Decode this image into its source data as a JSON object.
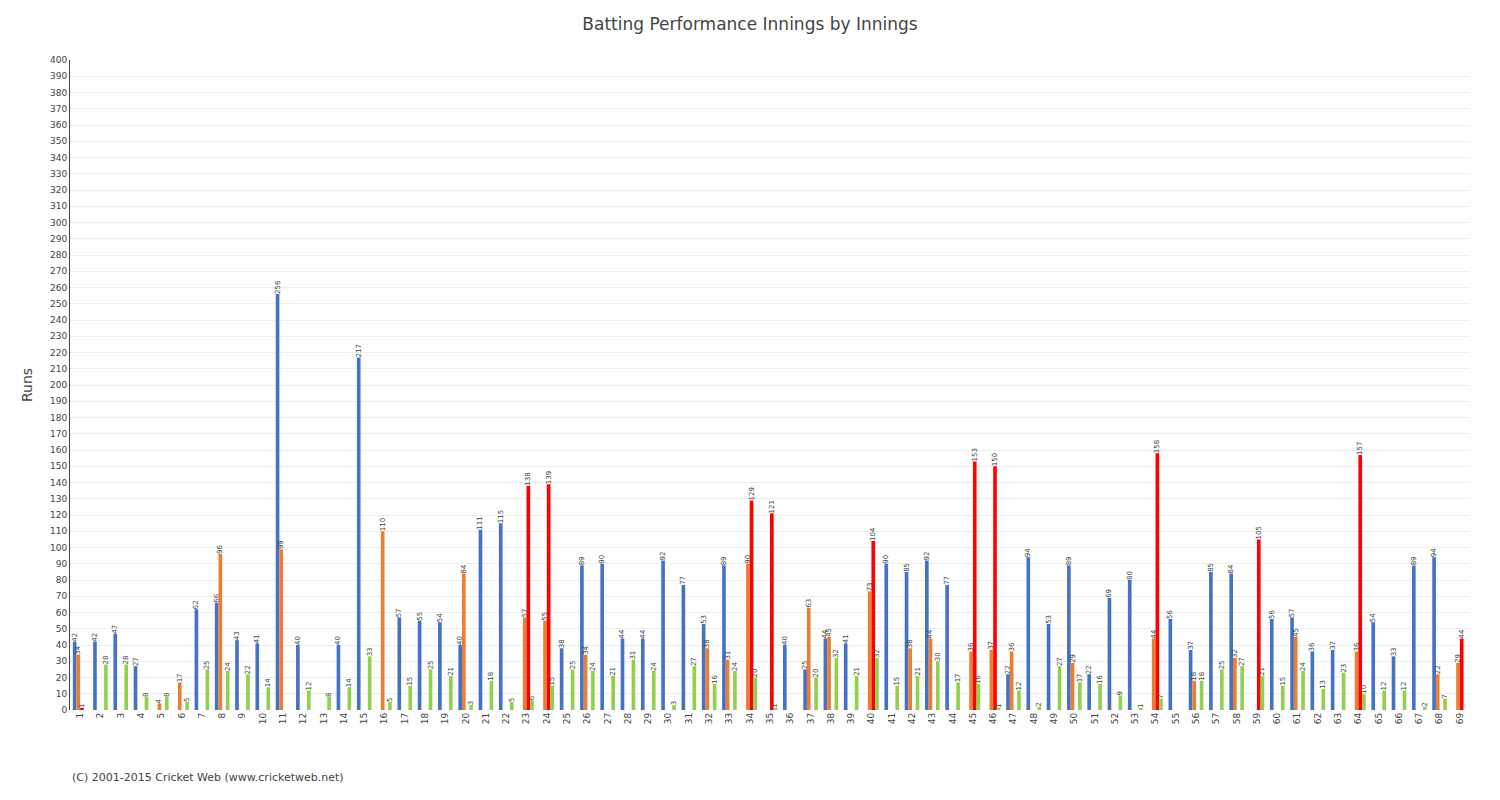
{
  "chart_data": {
    "type": "bar",
    "title": "Batting Performance Innings by Innings",
    "ylabel": "Runs",
    "annotations": [
      "(C) 2001-2015 Cricket Web (www.cricketweb.net)"
    ],
    "categories": [
      "1",
      "2",
      "3",
      "4",
      "5",
      "6",
      "7",
      "8",
      "9",
      "10",
      "11",
      "12",
      "13",
      "14",
      "15",
      "16",
      "17",
      "18",
      "19",
      "20",
      "21",
      "22",
      "23",
      "24",
      "25",
      "26",
      "27",
      "28",
      "29",
      "30",
      "31",
      "32",
      "33",
      "34",
      "35",
      "36",
      "37",
      "38",
      "39",
      "40",
      "41",
      "42",
      "43",
      "44",
      "45",
      "46",
      "47",
      "48",
      "49",
      "50",
      "51",
      "52",
      "53",
      "54",
      "55",
      "56",
      "57",
      "58",
      "59",
      "60",
      "61",
      "62",
      "63",
      "64",
      "65",
      "66",
      "67",
      "68",
      "69"
    ],
    "series": [
      {
        "color": "#4472c4",
        "values": [
          42,
          42,
          47,
          27,
          0,
          0,
          62,
          66,
          43,
          41,
          256,
          40,
          0,
          40,
          217,
          0,
          57,
          55,
          54,
          40,
          111,
          115,
          0,
          0,
          38,
          89,
          90,
          44,
          44,
          92,
          77,
          53,
          89,
          0,
          0,
          40,
          25,
          44,
          41,
          0,
          90,
          85,
          92,
          77,
          0,
          0,
          22,
          94,
          53,
          89,
          22,
          69,
          80,
          0,
          56,
          37,
          85,
          84,
          0,
          56,
          57,
          36,
          37,
          0,
          54,
          33,
          89,
          94,
          0
        ]
      },
      {
        "color": "#ed7d31",
        "values": [
          34,
          0,
          0,
          0,
          4,
          17,
          0,
          96,
          0,
          0,
          99,
          0,
          0,
          0,
          0,
          110,
          0,
          0,
          0,
          84,
          0,
          0,
          57,
          55,
          0,
          34,
          0,
          0,
          0,
          0,
          0,
          38,
          31,
          90,
          0,
          0,
          63,
          45,
          0,
          73,
          0,
          38,
          44,
          0,
          36,
          37,
          36,
          0,
          0,
          29,
          0,
          0,
          0,
          44,
          0,
          18,
          0,
          32,
          0,
          0,
          45,
          0,
          0,
          36,
          0,
          0,
          0,
          22,
          29
        ]
      },
      {
        "color": "#ff0000",
        "values": [
          1,
          0,
          0,
          0,
          0,
          0,
          0,
          0,
          0,
          0,
          0,
          0,
          0,
          0,
          0,
          0,
          0,
          0,
          0,
          0,
          0,
          0,
          138,
          139,
          0,
          0,
          0,
          0,
          0,
          0,
          0,
          0,
          0,
          129,
          121,
          0,
          0,
          0,
          0,
          104,
          0,
          0,
          0,
          0,
          153,
          150,
          0,
          0,
          0,
          0,
          0,
          0,
          0,
          158,
          0,
          0,
          0,
          0,
          105,
          0,
          0,
          0,
          0,
          157,
          0,
          0,
          0,
          0,
          44
        ]
      },
      {
        "color": "#92d050",
        "values": [
          0,
          28,
          28,
          8,
          8,
          5,
          25,
          24,
          22,
          14,
          0,
          12,
          8,
          14,
          33,
          5,
          15,
          25,
          21,
          3,
          18,
          5,
          6,
          15,
          25,
          24,
          21,
          31,
          24,
          3,
          27,
          16,
          24,
          20,
          1,
          0,
          20,
          32,
          21,
          32,
          15,
          21,
          30,
          17,
          16,
          1,
          12,
          2,
          27,
          17,
          16,
          9,
          1,
          7,
          0,
          18,
          25,
          27,
          21,
          15,
          24,
          13,
          23,
          10,
          12,
          12,
          2,
          7,
          0
        ]
      }
    ],
    "ylim": [
      0,
      400
    ],
    "yticks": [
      0,
      10,
      20,
      30,
      40,
      50,
      60,
      70,
      80,
      90,
      100,
      110,
      120,
      130,
      140,
      150,
      160,
      170,
      180,
      190,
      200,
      210,
      220,
      230,
      240,
      250,
      260,
      270,
      280,
      290,
      300,
      310,
      320,
      330,
      340,
      350,
      360,
      370,
      380,
      390,
      400
    ],
    "grid": true,
    "data_labels": true
  }
}
